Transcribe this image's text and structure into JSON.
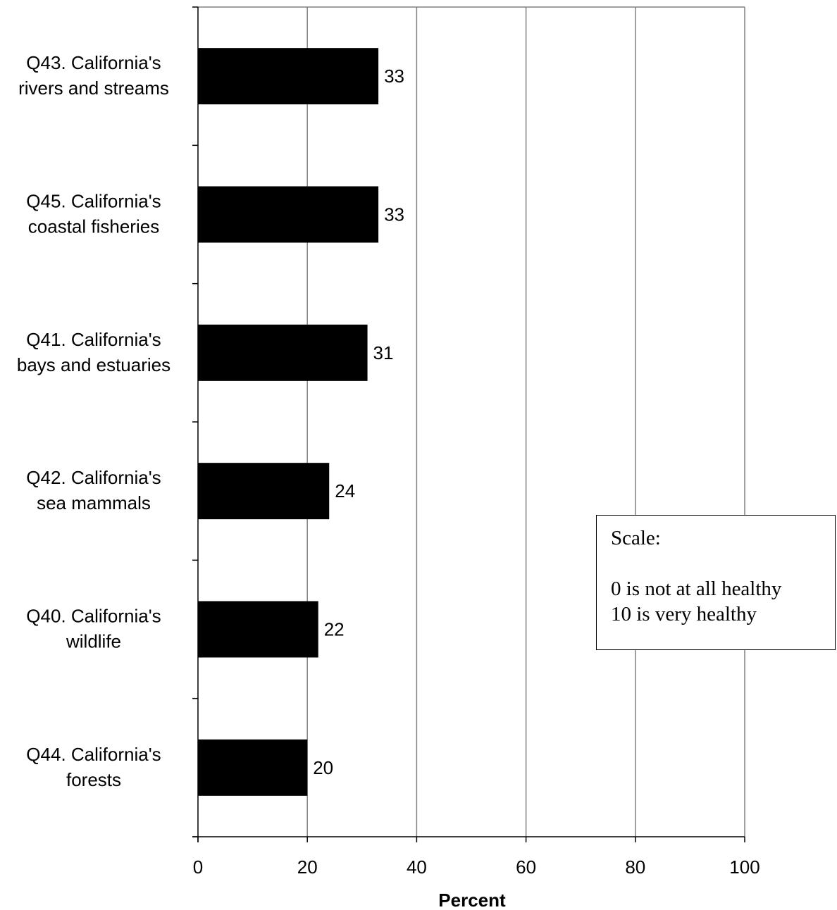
{
  "chart_data": {
    "type": "bar",
    "orientation": "horizontal",
    "categories": [
      "Q43. California's rivers and streams",
      "Q45. California's coastal fisheries",
      "Q41. California's bays and estuaries",
      "Q42. California's sea mammals",
      "Q40. California's wildlife",
      "Q44. California's forests"
    ],
    "category_lines": [
      [
        "Q43. California's",
        "rivers and streams"
      ],
      [
        "Q45. California's",
        "coastal fisheries"
      ],
      [
        "Q41. California's",
        "bays and estuaries"
      ],
      [
        "Q42. California's",
        "sea mammals"
      ],
      [
        "Q40. California's",
        "wildlife"
      ],
      [
        "Q44. California's",
        "forests"
      ]
    ],
    "values": [
      33,
      33,
      31,
      24,
      22,
      20
    ],
    "value_labels": [
      "33",
      "33",
      "31",
      "24",
      "22",
      "20"
    ],
    "xlabel": "Percent",
    "ylabel": "",
    "xlim": [
      0,
      100
    ],
    "xticks": [
      0,
      20,
      40,
      60,
      80,
      100
    ],
    "xtick_labels": [
      "0",
      "20",
      "40",
      "60",
      "80",
      "100"
    ],
    "grid": "vertical",
    "bar_color": "#000000",
    "gridline_color": "#808080"
  },
  "note": {
    "title": "Scale:",
    "lines": [
      "0 is not at all healthy",
      "10 is very healthy"
    ]
  }
}
